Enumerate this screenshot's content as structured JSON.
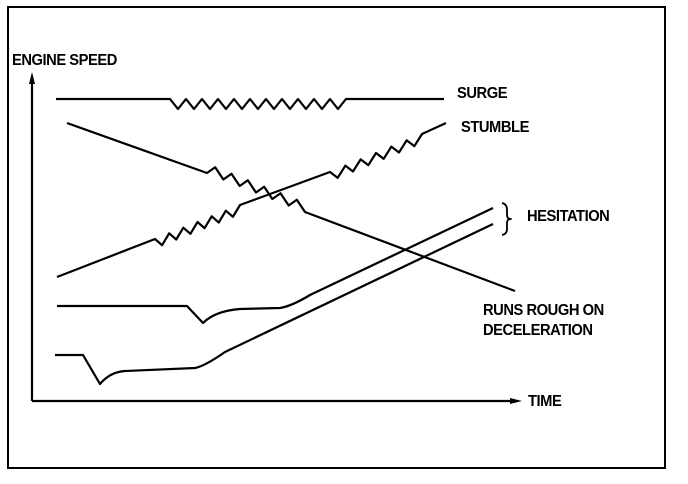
{
  "axes": {
    "y_label": "ENGINE SPEED",
    "x_label": "TIME"
  },
  "curves": {
    "surge": "SURGE",
    "stumble": "STUMBLE",
    "hesitation": "HESITATION",
    "runs_rough_line1": "RUNS ROUGH ON",
    "runs_rough_line2": "DECELERATION"
  },
  "colors": {
    "ink": "#000000",
    "background": "#ffffff"
  }
}
